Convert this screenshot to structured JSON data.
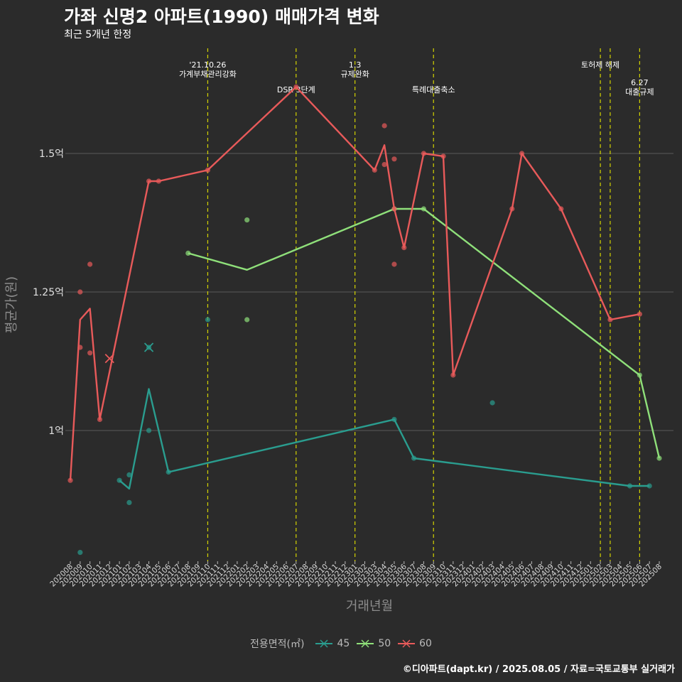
{
  "header": {
    "title": "가좌 신명2 아파트(1990) 매매가격 변화",
    "subtitle": "최근 5개년 한정",
    "caption": "©디아파트(dapt.kr) / 2025.08.05 / 자료=국토교통부 실거래가"
  },
  "legend": {
    "title": "전용면적(㎡)",
    "items": [
      {
        "label": "45",
        "color": "#2a9d8f"
      },
      {
        "label": "50",
        "color": "#8fe07a"
      },
      {
        "label": "60",
        "color": "#e85a5a"
      }
    ]
  },
  "chart_data": {
    "type": "line",
    "xlabel": "거래년월",
    "ylabel": "평균가(원)",
    "x_categories": [
      "202008",
      "202009",
      "202010",
      "202011",
      "202012",
      "202101",
      "202102",
      "202103",
      "202104",
      "202105",
      "202106",
      "202107",
      "202108",
      "202109",
      "202110",
      "202111",
      "202112",
      "202201",
      "202202",
      "202203",
      "202204",
      "202205",
      "202206",
      "202207",
      "202208",
      "202209",
      "202210",
      "202211",
      "202212",
      "202301",
      "202302",
      "202303",
      "202304",
      "202305",
      "202306",
      "202307",
      "202308",
      "202309",
      "202310",
      "202311",
      "202312",
      "202401",
      "202402",
      "202403",
      "202404",
      "202405",
      "202406",
      "202407",
      "202408",
      "202409",
      "202410",
      "202411",
      "202412",
      "202501",
      "202502",
      "202503",
      "202504",
      "202505",
      "202506",
      "202507",
      "202508"
    ],
    "y_ticks": [
      {
        "value": 1.0,
        "label": "1억"
      },
      {
        "value": 1.25,
        "label": "1.25억"
      },
      {
        "value": 1.5,
        "label": "1.5억"
      }
    ],
    "ylim": [
      0.76,
      1.6
    ],
    "grid": true,
    "legend_position": "bottom",
    "events": [
      {
        "x": "202110",
        "label": "'21.10.26\n가계부채관리강화",
        "label_row": 1
      },
      {
        "x": "202207",
        "label": "DSR 3단계",
        "label_row": 2
      },
      {
        "x": "202301",
        "label": "1.3\n규제완화",
        "label_row": 1
      },
      {
        "x": "202309",
        "label": "특례대출축소",
        "label_row": 2
      },
      {
        "x": "202502",
        "label": "토허제 해제",
        "label_row": 1,
        "anchor": "right"
      },
      {
        "x": "202503",
        "label": "",
        "label_row": 1
      },
      {
        "x": "202506",
        "label": "6.27\n대출규제",
        "label_row": 2
      }
    ],
    "series": [
      {
        "name": "45",
        "color": "#2a9d8f",
        "line": [
          [
            "202101",
            0.91
          ],
          [
            "202102",
            0.895
          ],
          [
            "202104",
            1.075
          ],
          [
            "202106",
            0.925
          ],
          [
            "202305",
            1.02
          ],
          [
            "202307",
            0.95
          ],
          [
            "202505",
            0.9
          ],
          [
            "202507",
            0.9
          ]
        ],
        "points": [
          [
            "202009",
            0.78
          ],
          [
            "202101",
            0.91
          ],
          [
            "202102",
            0.87
          ],
          [
            "202102",
            0.92
          ],
          [
            "202104",
            1.0
          ],
          [
            "202104",
            1.15
          ],
          [
            "202106",
            0.925
          ],
          [
            "202110",
            1.2
          ],
          [
            "202305",
            1.02
          ],
          [
            "202307",
            0.95
          ],
          [
            "202403",
            1.05
          ],
          [
            "202505",
            0.9
          ],
          [
            "202507",
            0.9
          ]
        ],
        "x_marks": [
          [
            "202104",
            1.15
          ]
        ]
      },
      {
        "name": "50",
        "color": "#8fe07a",
        "line": [
          [
            "202108",
            1.32
          ],
          [
            "202202",
            1.29
          ],
          [
            "202305",
            1.4
          ],
          [
            "202308",
            1.4
          ],
          [
            "202506",
            1.1
          ],
          [
            "202508",
            0.95
          ]
        ],
        "points": [
          [
            "202108",
            1.32
          ],
          [
            "202202",
            1.38
          ],
          [
            "202202",
            1.2
          ],
          [
            "202305",
            1.4
          ],
          [
            "202308",
            1.4
          ],
          [
            "202506",
            1.1
          ],
          [
            "202508",
            0.95
          ]
        ],
        "x_marks": []
      },
      {
        "name": "60",
        "color": "#e85a5a",
        "line": [
          [
            "202008",
            0.91
          ],
          [
            "202009",
            1.2
          ],
          [
            "202010",
            1.22
          ],
          [
            "202011",
            1.02
          ],
          [
            "202104",
            1.45
          ],
          [
            "202105",
            1.45
          ],
          [
            "202110",
            1.47
          ],
          [
            "202207",
            1.62
          ],
          [
            "202303",
            1.47
          ],
          [
            "202304",
            1.515
          ],
          [
            "202305",
            1.4
          ],
          [
            "202306",
            1.33
          ],
          [
            "202308",
            1.5
          ],
          [
            "202310",
            1.495
          ],
          [
            "202311",
            1.1
          ],
          [
            "202405",
            1.4
          ],
          [
            "202406",
            1.5
          ],
          [
            "202410",
            1.4
          ],
          [
            "202503",
            1.2
          ],
          [
            "202506",
            1.21
          ]
        ],
        "points": [
          [
            "202008",
            0.91
          ],
          [
            "202009",
            1.25
          ],
          [
            "202009",
            1.15
          ],
          [
            "202010",
            1.3
          ],
          [
            "202010",
            1.14
          ],
          [
            "202011",
            1.02
          ],
          [
            "202104",
            1.45
          ],
          [
            "202105",
            1.45
          ],
          [
            "202110",
            1.47
          ],
          [
            "202207",
            1.62
          ],
          [
            "202303",
            1.47
          ],
          [
            "202304",
            1.55
          ],
          [
            "202304",
            1.48
          ],
          [
            "202305",
            1.49
          ],
          [
            "202305",
            1.3
          ],
          [
            "202305",
            1.4
          ],
          [
            "202306",
            1.33
          ],
          [
            "202308",
            1.5
          ],
          [
            "202310",
            1.495
          ],
          [
            "202311",
            1.1
          ],
          [
            "202405",
            1.4
          ],
          [
            "202406",
            1.5
          ],
          [
            "202410",
            1.4
          ],
          [
            "202503",
            1.2
          ],
          [
            "202506",
            1.21
          ]
        ],
        "x_marks": [
          [
            "202012",
            1.13
          ]
        ]
      }
    ]
  }
}
